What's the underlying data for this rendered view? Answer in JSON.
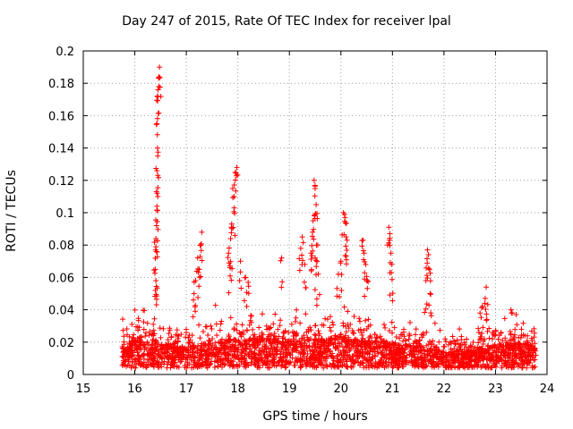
{
  "chart_data": {
    "type": "scatter",
    "title": "Day 247 of 2015, Rate Of TEC Index for receiver lpal",
    "xlabel": "GPS time / hours",
    "ylabel": "ROTI / TECUs",
    "xlim": [
      15,
      24
    ],
    "ylim": [
      0,
      0.2
    ],
    "xticks": [
      "15",
      "16",
      "17",
      "18",
      "19",
      "20",
      "21",
      "22",
      "23",
      "24"
    ],
    "yticks": [
      "0",
      "0.02",
      "0.04",
      "0.06",
      "0.08",
      "0.1",
      "0.12",
      "0.14",
      "0.16",
      "0.18",
      "0.2"
    ],
    "grid": true,
    "marker": "+",
    "color": "#ff0000",
    "x_range_of_data": [
      15.75,
      23.8
    ],
    "background_density": [
      [
        15.75,
        0.014
      ],
      [
        16.0,
        0.018
      ],
      [
        16.5,
        0.015
      ],
      [
        17.0,
        0.013
      ],
      [
        17.5,
        0.016
      ],
      [
        18.0,
        0.018
      ],
      [
        18.5,
        0.019
      ],
      [
        19.0,
        0.017
      ],
      [
        19.5,
        0.018
      ],
      [
        20.0,
        0.019
      ],
      [
        20.5,
        0.017
      ],
      [
        21.0,
        0.016
      ],
      [
        21.5,
        0.014
      ],
      [
        22.0,
        0.01
      ],
      [
        22.5,
        0.011
      ],
      [
        23.0,
        0.015
      ],
      [
        23.5,
        0.016
      ],
      [
        23.8,
        0.015
      ]
    ],
    "series": [
      {
        "name": "ROTI",
        "points": [
          [
            16.48,
            0.19
          ],
          [
            16.47,
            0.184
          ],
          [
            16.45,
            0.176
          ],
          [
            16.44,
            0.172
          ],
          [
            16.43,
            0.155
          ],
          [
            16.44,
            0.14
          ],
          [
            16.43,
            0.126
          ],
          [
            16.42,
            0.113
          ],
          [
            16.43,
            0.104
          ],
          [
            16.42,
            0.092
          ],
          [
            16.41,
            0.084
          ],
          [
            16.42,
            0.076
          ],
          [
            16.4,
            0.065
          ],
          [
            16.41,
            0.058
          ],
          [
            16.4,
            0.052
          ],
          [
            17.22,
            0.072
          ],
          [
            17.28,
            0.08
          ],
          [
            17.3,
            0.088
          ],
          [
            17.25,
            0.065
          ],
          [
            17.18,
            0.058
          ],
          [
            17.15,
            0.05
          ],
          [
            17.9,
            0.115
          ],
          [
            17.95,
            0.125
          ],
          [
            17.98,
            0.128
          ],
          [
            17.93,
            0.103
          ],
          [
            17.88,
            0.093
          ],
          [
            17.86,
            0.084
          ],
          [
            17.82,
            0.075
          ],
          [
            17.85,
            0.066
          ],
          [
            18.05,
            0.07
          ],
          [
            18.15,
            0.06
          ],
          [
            18.2,
            0.057
          ],
          [
            18.85,
            0.072
          ],
          [
            19.25,
            0.085
          ],
          [
            19.22,
            0.078
          ],
          [
            19.3,
            0.068
          ],
          [
            19.48,
            0.12
          ],
          [
            19.5,
            0.115
          ],
          [
            19.52,
            0.105
          ],
          [
            19.46,
            0.095
          ],
          [
            19.45,
            0.088
          ],
          [
            19.55,
            0.08
          ],
          [
            19.42,
            0.075
          ],
          [
            19.5,
            0.072
          ],
          [
            19.56,
            0.062
          ],
          [
            20.05,
            0.1
          ],
          [
            20.08,
            0.097
          ],
          [
            20.1,
            0.085
          ],
          [
            20.12,
            0.083
          ],
          [
            20.0,
            0.07
          ],
          [
            19.95,
            0.062
          ],
          [
            20.43,
            0.083
          ],
          [
            20.45,
            0.075
          ],
          [
            20.48,
            0.068
          ],
          [
            20.5,
            0.058
          ],
          [
            20.93,
            0.091
          ],
          [
            20.95,
            0.087
          ],
          [
            20.97,
            0.075
          ],
          [
            20.98,
            0.063
          ],
          [
            21.68,
            0.077
          ],
          [
            21.7,
            0.074
          ],
          [
            21.72,
            0.065
          ],
          [
            21.65,
            0.058
          ],
          [
            21.73,
            0.05
          ],
          [
            22.82,
            0.054
          ],
          [
            22.8,
            0.047
          ],
          [
            22.75,
            0.042
          ],
          [
            22.7,
            0.038
          ],
          [
            23.3,
            0.04
          ],
          [
            23.4,
            0.037
          ]
        ]
      }
    ]
  }
}
